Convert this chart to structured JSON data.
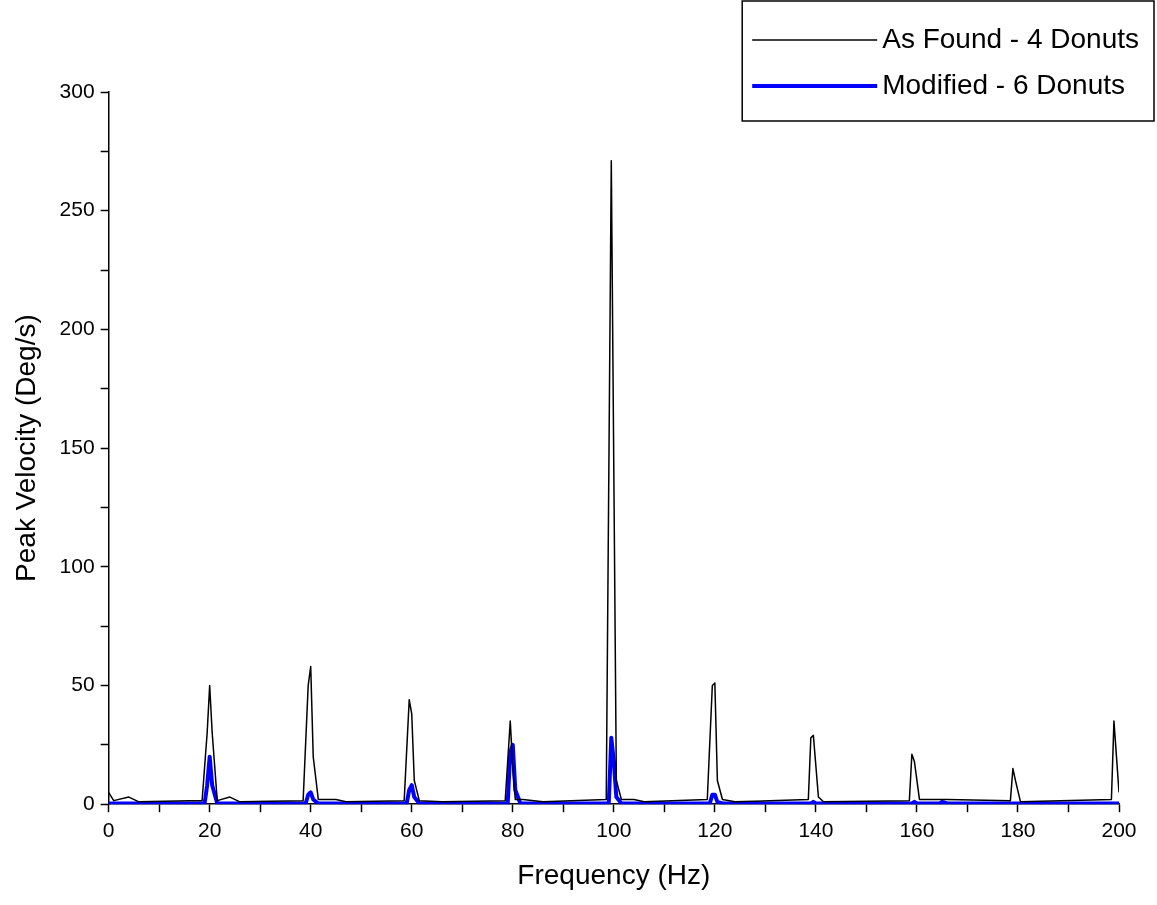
{
  "chart_data": {
    "type": "line",
    "xlabel": "Frequency (Hz)",
    "ylabel": "Peak Velocity (Deg/s)",
    "xlim": [
      0,
      200
    ],
    "xticks": [
      0,
      {
        "value": 10,
        "label": null
      },
      20,
      {
        "value": 30,
        "label": null
      },
      40,
      {
        "value": 50,
        "label": null
      },
      60,
      {
        "value": 70,
        "label": null
      },
      80,
      {
        "value": 90,
        "label": null
      },
      100,
      {
        "value": 110,
        "label": null
      },
      120,
      {
        "value": 130,
        "label": null
      },
      140,
      {
        "value": 150,
        "label": null
      },
      160,
      {
        "value": 170,
        "label": null
      },
      180,
      {
        "value": 190,
        "label": null
      },
      200
    ],
    "ylim": [
      0,
      300
    ],
    "yticks": [
      0,
      {
        "value": 25,
        "label": null
      },
      50,
      {
        "value": 75,
        "label": null
      },
      100,
      {
        "value": 125,
        "label": null
      },
      150,
      {
        "value": 175,
        "label": null
      },
      200,
      {
        "value": 225,
        "label": null
      },
      250,
      {
        "value": 275,
        "label": null
      },
      300
    ],
    "grid": false,
    "legend": "top right",
    "marker": "none",
    "line_style": "solid",
    "series": [
      {
        "name": "As Found - 4 Donuts",
        "color": "#000000",
        "x": [
          0,
          1,
          4,
          6,
          16,
          18.5,
          19.5,
          20,
          20.5,
          21.5,
          24,
          26,
          38.5,
          39.5,
          40,
          40.5,
          41.5,
          45,
          47,
          58.5,
          59.5,
          60,
          60.5,
          61.5,
          66,
          78.5,
          79.5,
          80,
          80.5,
          82,
          86,
          98.5,
          99.5,
          100.5,
          101.5,
          104,
          106,
          118.5,
          119.5,
          120,
          120.5,
          121.5,
          124,
          138.5,
          139,
          139.5,
          140.5,
          141.5,
          158.5,
          159,
          159.5,
          160.5,
          166,
          178.5,
          179,
          179.5,
          180.5,
          198.5,
          199,
          200
        ],
        "values": [
          5,
          1.5,
          3,
          1,
          1.5,
          1.5,
          30,
          50,
          30,
          1.5,
          3,
          1,
          1.5,
          50,
          58,
          20,
          2,
          2,
          1,
          1.5,
          44,
          38,
          10,
          1.5,
          1,
          1.5,
          35,
          15,
          2,
          2,
          1,
          2,
          271,
          10,
          2,
          2,
          1,
          2,
          50,
          51,
          10,
          2,
          1,
          2,
          28,
          29,
          3,
          1,
          1.5,
          21,
          18,
          2,
          2,
          1.5,
          15,
          10,
          1,
          2,
          35,
          5
        ]
      },
      {
        "name": "Modified - 6 Donuts",
        "color": "#0000ff",
        "x": [
          0,
          19,
          19.5,
          20,
          20.5,
          21.5,
          39,
          39.5,
          40,
          40.5,
          41.5,
          59,
          59.5,
          60,
          60.5,
          61.5,
          79,
          79.5,
          80,
          80.5,
          81.5,
          99,
          99.5,
          100,
          100.5,
          101.5,
          119,
          119.5,
          120,
          120.5,
          121.5,
          139,
          139.5,
          140,
          159,
          159.5,
          160,
          164.5,
          165,
          166,
          200
        ],
        "values": [
          0.3,
          0.3,
          8,
          20,
          8,
          0.3,
          0.3,
          4,
          5,
          2,
          0.3,
          0.3,
          6,
          8,
          3,
          0.3,
          0.3,
          22,
          25,
          6,
          0.3,
          0.3,
          28,
          18,
          3,
          0.3,
          0.3,
          4,
          4,
          1,
          0.3,
          0.3,
          1,
          0.3,
          0.3,
          1,
          0.3,
          0.3,
          1,
          0.3,
          0.3
        ]
      }
    ]
  }
}
